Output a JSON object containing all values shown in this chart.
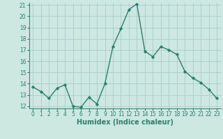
{
  "x": [
    0,
    1,
    2,
    3,
    4,
    5,
    6,
    7,
    8,
    9,
    10,
    11,
    12,
    13,
    14,
    15,
    16,
    17,
    18,
    19,
    20,
    21,
    22,
    23
  ],
  "y": [
    13.7,
    13.3,
    12.7,
    13.6,
    13.9,
    12.0,
    11.9,
    12.8,
    12.2,
    14.0,
    17.3,
    18.9,
    20.6,
    21.1,
    16.9,
    16.4,
    17.3,
    17.0,
    16.6,
    15.1,
    14.5,
    14.1,
    13.5,
    12.7
  ],
  "line_color": "#2e7d6e",
  "marker": "D",
  "marker_size": 2.2,
  "bg_color": "#cce8e0",
  "grid_color": "#aacccc",
  "xlabel": "Humidex (Indice chaleur)",
  "ylim": [
    12,
    21
  ],
  "xlim": [
    -0.5,
    23.5
  ],
  "yticks": [
    12,
    13,
    14,
    15,
    16,
    17,
    18,
    19,
    20,
    21
  ],
  "xticks": [
    0,
    1,
    2,
    3,
    4,
    5,
    6,
    7,
    8,
    9,
    10,
    11,
    12,
    13,
    14,
    15,
    16,
    17,
    18,
    19,
    20,
    21,
    22,
    23
  ],
  "tick_labelsize": 5.5,
  "xlabel_fontsize": 7,
  "line_width": 1.0
}
